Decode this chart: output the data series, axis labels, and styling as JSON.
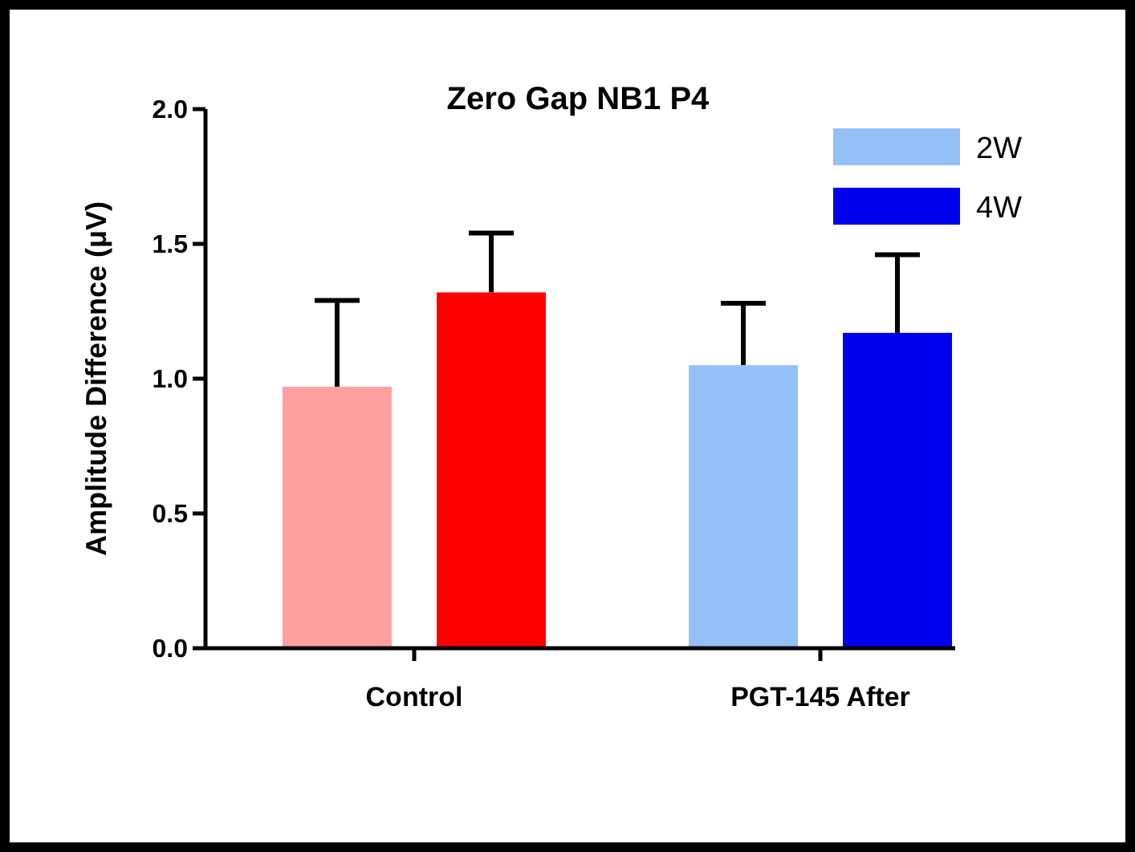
{
  "chart_data": {
    "type": "bar",
    "title": "Zero Gap NB1 P4",
    "ylabel": "Amplitude Difference (μV)",
    "categories": [
      "Control",
      "PGT-145 After"
    ],
    "series": [
      {
        "name": "2W",
        "color": "#94c0f8",
        "colors": [
          "#ffa0a0",
          "#94c0f8"
        ],
        "values": [
          0.97,
          1.05
        ],
        "errors": [
          [
            0.97,
            1.29
          ],
          [
            1.05,
            1.28
          ]
        ]
      },
      {
        "name": "4W",
        "color": "#0000ee",
        "colors": [
          "#ff0000",
          "#0000ee"
        ],
        "values": [
          1.32,
          1.17
        ],
        "errors": [
          [
            1.32,
            1.54
          ],
          [
            1.17,
            1.46
          ]
        ]
      }
    ],
    "ylim": [
      0,
      2
    ],
    "yticks": [
      {
        "value": 0,
        "label": "0.0"
      },
      {
        "value": 0.5,
        "label": "0.5"
      },
      {
        "value": 1,
        "label": "1.0"
      },
      {
        "value": 1.5,
        "label": "1.5"
      },
      {
        "value": 2,
        "label": "2.0"
      }
    ],
    "grid": false,
    "legend": "top right"
  }
}
